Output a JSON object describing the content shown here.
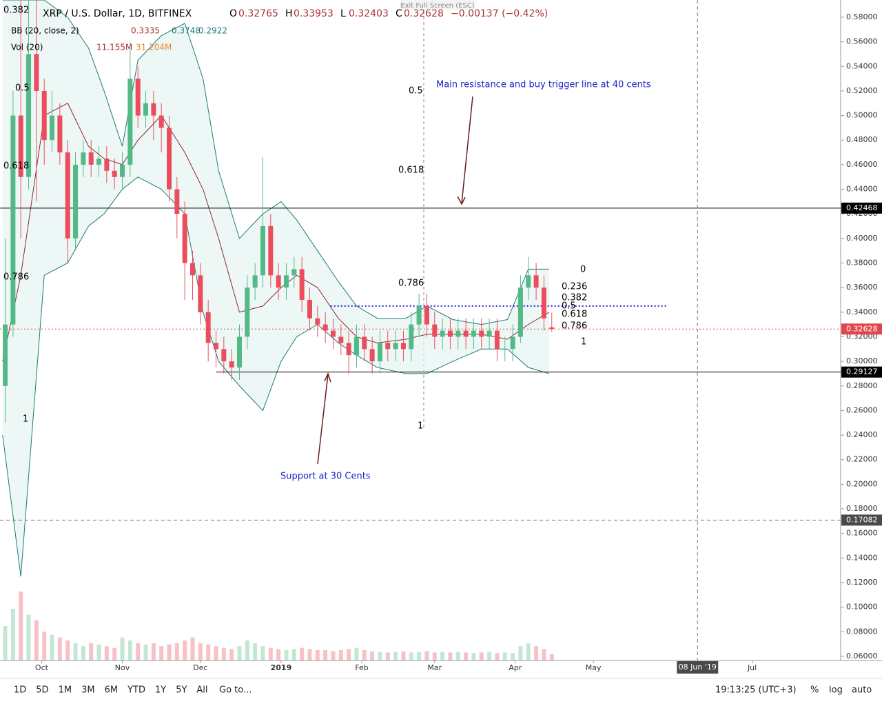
{
  "header": {
    "symbol": "XRP / U.S. Dollar, 1D, BITFINEX",
    "open_label": "O",
    "open": "0.32765",
    "high_label": "H",
    "high": "0.33953",
    "low_label": "L",
    "low": "0.32403",
    "close_label": "C",
    "close": "0.32628",
    "change": "−0.00137 (−0.42%)",
    "exit": "Exit Full Screen (ESC)"
  },
  "indicators": {
    "bb_name": "BB (20, close, 2)",
    "bb_values": [
      "0.3335",
      "0.3748",
      "0.2922"
    ],
    "vol_name": "Vol (20)",
    "vol_values": [
      "11.155M",
      "31.204M"
    ]
  },
  "toolbar": {
    "ranges": [
      "1D",
      "5D",
      "1M",
      "3M",
      "6M",
      "YTD",
      "1Y",
      "5Y",
      "All"
    ],
    "goto": "Go to...",
    "clock": "19:13:25 (UTC+3)",
    "options": [
      "%",
      "log",
      "auto"
    ]
  },
  "annotations": {
    "resistance": "Main resistance and buy trigger line at 40 cents",
    "support": "Support at 30 Cents"
  },
  "fib_labels": [
    "0.382",
    "0.5",
    "0.618",
    "0.786",
    "1",
    "0.5",
    "0.618",
    "0.786",
    "1",
    "0",
    "0.236",
    "0.382",
    "0.5",
    "0.618",
    "0.786",
    "1"
  ],
  "chart_data": {
    "type": "candlestick",
    "xlim": [
      -16,
      307
    ],
    "ylim": [
      0.0566,
      0.594
    ],
    "xticks": [
      {
        "value": 0,
        "label": "Oct"
      },
      {
        "value": 31,
        "label": "Nov"
      },
      {
        "value": 61,
        "label": "Dec"
      },
      {
        "value": 92,
        "label": "2019"
      },
      {
        "value": 123,
        "label": "Feb"
      },
      {
        "value": 151,
        "label": "Mar"
      },
      {
        "value": 182,
        "label": "Apr"
      },
      {
        "value": 212,
        "label": "May"
      },
      {
        "value": 273,
        "label": "Jul"
      }
    ],
    "yticks": [
      {
        "value": 0.06,
        "label": "0.06000"
      },
      {
        "value": 0.08,
        "label": "0.08000"
      },
      {
        "value": 0.1,
        "label": "0.10000"
      },
      {
        "value": 0.12,
        "label": "0.12000"
      },
      {
        "value": 0.14,
        "label": "0.14000"
      },
      {
        "value": 0.16,
        "label": "0.16000"
      },
      {
        "value": 0.18,
        "label": "0.18000"
      },
      {
        "value": 0.2,
        "label": "0.20000"
      },
      {
        "value": 0.22,
        "label": "0.22000"
      },
      {
        "value": 0.24,
        "label": "0.24000"
      },
      {
        "value": 0.26,
        "label": "0.26000"
      },
      {
        "value": 0.28,
        "label": "0.28000"
      },
      {
        "value": 0.3,
        "label": "0.30000"
      },
      {
        "value": 0.32,
        "label": "0.32000"
      },
      {
        "value": 0.34,
        "label": "0.34000"
      },
      {
        "value": 0.36,
        "label": "0.36000"
      },
      {
        "value": 0.38,
        "label": "0.38000"
      },
      {
        "value": 0.4,
        "label": "0.40000"
      },
      {
        "value": 0.42,
        "label": "0.42000"
      },
      {
        "value": 0.44,
        "label": "0.44000"
      },
      {
        "value": 0.46,
        "label": "0.46000"
      },
      {
        "value": 0.48,
        "label": "0.48000"
      },
      {
        "value": 0.5,
        "label": "0.50000"
      },
      {
        "value": 0.52,
        "label": "0.52000"
      },
      {
        "value": 0.54,
        "label": "0.54000"
      },
      {
        "value": 0.56,
        "label": "0.56000"
      },
      {
        "value": 0.58,
        "label": "0.58000"
      }
    ],
    "up_color": "#53b987",
    "down_color": "#eb4d5c",
    "x": [
      -14,
      -11,
      -8,
      -5,
      -2,
      1,
      4,
      7,
      10,
      13,
      16,
      19,
      22,
      25,
      28,
      31,
      34,
      37,
      40,
      43,
      46,
      49,
      52,
      55,
      58,
      61,
      64,
      67,
      70,
      73,
      76,
      79,
      82,
      85,
      88,
      91,
      94,
      97,
      100,
      103,
      106,
      109,
      112,
      115,
      118,
      121,
      124,
      127,
      130,
      133,
      136,
      139,
      142,
      145,
      148,
      151,
      154,
      157,
      160,
      163,
      166,
      169,
      172,
      175,
      178,
      181,
      184,
      187,
      190,
      193,
      196
    ],
    "open": [
      0.28,
      0.33,
      0.5,
      0.45,
      0.55,
      0.52,
      0.48,
      0.5,
      0.47,
      0.4,
      0.46,
      0.47,
      0.46,
      0.465,
      0.455,
      0.45,
      0.46,
      0.53,
      0.5,
      0.51,
      0.5,
      0.49,
      0.44,
      0.42,
      0.38,
      0.37,
      0.34,
      0.315,
      0.31,
      0.3,
      0.295,
      0.32,
      0.36,
      0.37,
      0.41,
      0.37,
      0.36,
      0.37,
      0.375,
      0.35,
      0.335,
      0.33,
      0.325,
      0.32,
      0.315,
      0.305,
      0.32,
      0.31,
      0.3,
      0.315,
      0.31,
      0.315,
      0.31,
      0.33,
      0.345,
      0.33,
      0.32,
      0.325,
      0.32,
      0.325,
      0.32,
      0.325,
      0.32,
      0.325,
      0.31,
      0.31,
      0.32,
      0.36,
      0.37,
      0.36,
      0.32765
    ],
    "high": [
      0.4,
      0.52,
      0.594,
      0.594,
      0.594,
      0.53,
      0.52,
      0.51,
      0.48,
      0.47,
      0.48,
      0.48,
      0.475,
      0.475,
      0.465,
      0.47,
      0.56,
      0.54,
      0.52,
      0.52,
      0.51,
      0.5,
      0.45,
      0.43,
      0.39,
      0.38,
      0.35,
      0.325,
      0.32,
      0.31,
      0.33,
      0.37,
      0.38,
      0.466,
      0.42,
      0.38,
      0.38,
      0.385,
      0.385,
      0.36,
      0.345,
      0.34,
      0.335,
      0.33,
      0.325,
      0.33,
      0.33,
      0.32,
      0.325,
      0.325,
      0.325,
      0.325,
      0.34,
      0.355,
      0.355,
      0.34,
      0.335,
      0.335,
      0.335,
      0.335,
      0.335,
      0.335,
      0.335,
      0.335,
      0.32,
      0.33,
      0.37,
      0.385,
      0.38,
      0.37,
      0.33953
    ],
    "low": [
      0.25,
      0.32,
      0.4,
      0.44,
      0.43,
      0.46,
      0.47,
      0.46,
      0.38,
      0.39,
      0.45,
      0.45,
      0.45,
      0.445,
      0.44,
      0.44,
      0.45,
      0.49,
      0.49,
      0.48,
      0.47,
      0.43,
      0.4,
      0.35,
      0.35,
      0.33,
      0.3,
      0.295,
      0.29,
      0.285,
      0.285,
      0.31,
      0.35,
      0.36,
      0.36,
      0.35,
      0.35,
      0.36,
      0.34,
      0.325,
      0.32,
      0.315,
      0.31,
      0.305,
      0.29,
      0.295,
      0.3,
      0.29,
      0.29,
      0.3,
      0.3,
      0.3,
      0.3,
      0.32,
      0.32,
      0.31,
      0.31,
      0.31,
      0.31,
      0.31,
      0.31,
      0.31,
      0.31,
      0.3,
      0.3,
      0.3,
      0.315,
      0.35,
      0.35,
      0.325,
      0.32403
    ],
    "close": [
      0.33,
      0.5,
      0.45,
      0.55,
      0.52,
      0.48,
      0.5,
      0.47,
      0.4,
      0.46,
      0.47,
      0.46,
      0.465,
      0.455,
      0.45,
      0.46,
      0.53,
      0.5,
      0.51,
      0.5,
      0.49,
      0.44,
      0.42,
      0.38,
      0.37,
      0.34,
      0.315,
      0.31,
      0.3,
      0.295,
      0.32,
      0.36,
      0.37,
      0.41,
      0.37,
      0.36,
      0.37,
      0.375,
      0.35,
      0.335,
      0.33,
      0.325,
      0.32,
      0.315,
      0.305,
      0.32,
      0.31,
      0.3,
      0.315,
      0.31,
      0.315,
      0.31,
      0.33,
      0.345,
      0.33,
      0.32,
      0.325,
      0.32,
      0.325,
      0.32,
      0.325,
      0.32,
      0.325,
      0.31,
      0.31,
      0.32,
      0.36,
      0.37,
      0.36,
      0.335,
      0.32628
    ],
    "volume": [
      60,
      90,
      120,
      80,
      70,
      50,
      45,
      40,
      35,
      30,
      25,
      30,
      28,
      25,
      22,
      40,
      35,
      30,
      28,
      30,
      25,
      28,
      30,
      35,
      40,
      30,
      28,
      25,
      22,
      20,
      25,
      35,
      30,
      25,
      22,
      20,
      18,
      20,
      22,
      20,
      18,
      18,
      16,
      18,
      20,
      22,
      18,
      16,
      15,
      14,
      15,
      16,
      14,
      15,
      16,
      14,
      15,
      14,
      15,
      14,
      13,
      14,
      15,
      13,
      14,
      13,
      25,
      30,
      25,
      20,
      11.155
    ],
    "bands": {
      "x": [
        -15,
        -8,
        1,
        10,
        18,
        24,
        31,
        37,
        46,
        55,
        62,
        68,
        76,
        85,
        92,
        98,
        106,
        114,
        121,
        129,
        140,
        148,
        158,
        169,
        179,
        187,
        195
      ],
      "upper": [
        0.594,
        0.594,
        0.594,
        0.58,
        0.555,
        0.52,
        0.475,
        0.545,
        0.565,
        0.575,
        0.53,
        0.455,
        0.4,
        0.42,
        0.43,
        0.415,
        0.39,
        0.365,
        0.345,
        0.335,
        0.335,
        0.345,
        0.334,
        0.33,
        0.334,
        0.375,
        0.375
      ],
      "basis": [
        0.3,
        0.37,
        0.5,
        0.51,
        0.475,
        0.465,
        0.46,
        0.48,
        0.5,
        0.47,
        0.44,
        0.4,
        0.34,
        0.345,
        0.36,
        0.37,
        0.36,
        0.335,
        0.32,
        0.315,
        0.318,
        0.322,
        0.322,
        0.322,
        0.318,
        0.33,
        0.34
      ],
      "lower": [
        0.24,
        0.125,
        0.37,
        0.38,
        0.41,
        0.42,
        0.44,
        0.45,
        0.44,
        0.42,
        0.34,
        0.3,
        0.28,
        0.26,
        0.3,
        0.32,
        0.33,
        0.315,
        0.305,
        0.295,
        0.29,
        0.29,
        0.3,
        0.31,
        0.31,
        0.295,
        0.29
      ]
    },
    "price_lines": [
      {
        "value": 0.42468,
        "from": -16,
        "color": "#000000",
        "style": "solid"
      },
      {
        "value": 0.29127,
        "from": 67,
        "color": "#000000",
        "style": "solid"
      },
      {
        "value": 0.32628,
        "from": -16,
        "color": "#e0474b",
        "style": "dotted"
      },
      {
        "value": 0.345,
        "from": 111,
        "to": 240,
        "color": "#1e22c8",
        "style": "dotted"
      }
    ],
    "crosshair": {
      "x": {
        "value": 252,
        "label": "08 Jun '19"
      },
      "y": 0.17082
    }
  }
}
